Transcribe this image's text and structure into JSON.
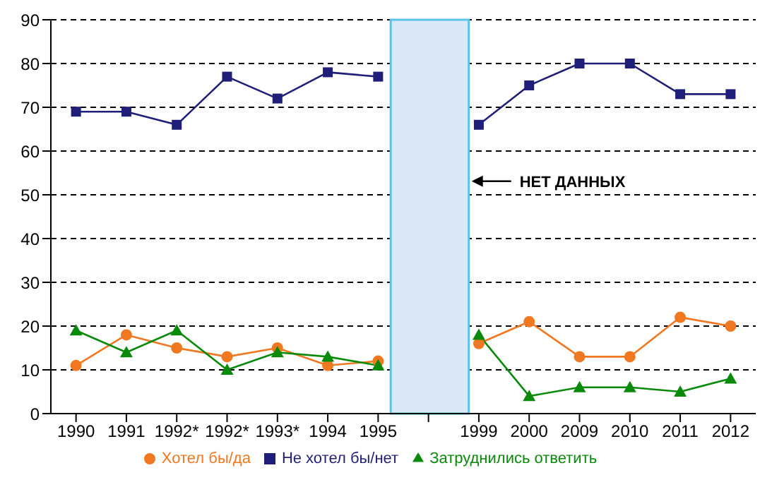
{
  "chart_data": {
    "type": "line",
    "categories": [
      "1990",
      "1991",
      "1992*",
      "1992*",
      "1993*",
      "1994",
      "1995",
      null,
      "1999",
      "2000",
      "2009",
      "2010",
      "2011",
      "2012"
    ],
    "series": [
      {
        "name": "Хотел бы/да",
        "color": "#f07820",
        "marker": "circle",
        "values": [
          11,
          18,
          15,
          13,
          15,
          11,
          12,
          null,
          16,
          21,
          13,
          13,
          22,
          20
        ]
      },
      {
        "name": "Не хотел бы/нет",
        "color": "#1f1f7a",
        "marker": "square",
        "values": [
          69,
          69,
          66,
          77,
          72,
          78,
          77,
          null,
          66,
          75,
          80,
          80,
          73,
          73
        ]
      },
      {
        "name": "Затруднились ответить",
        "color": "#0a8a0a",
        "marker": "triangle",
        "values": [
          19,
          14,
          19,
          10,
          14,
          13,
          11,
          null,
          18,
          4,
          6,
          6,
          5,
          8
        ]
      }
    ],
    "bands": [
      {
        "axis": "x",
        "from": "1995",
        "to": "1999",
        "label": "НЕТ ДАННЫХ",
        "color": "#dbe9f6"
      }
    ],
    "ylim": [
      0,
      90
    ],
    "yticks": [
      0,
      10,
      20,
      30,
      40,
      50,
      60,
      70,
      80,
      90
    ],
    "grid": "y",
    "legend": "bottom"
  }
}
